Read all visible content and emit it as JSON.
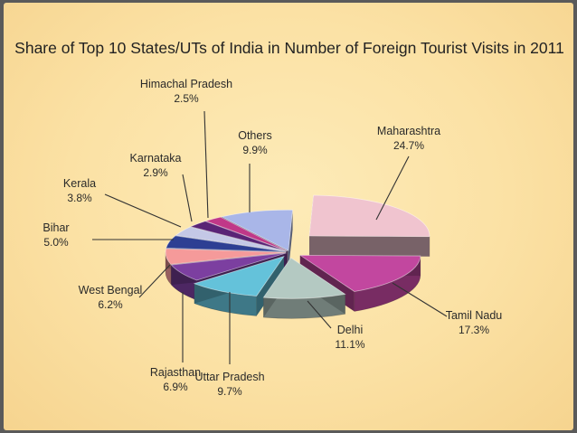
{
  "chart_data": {
    "type": "pie",
    "title": "Share of Top 10 States/UTs of India in Number of Foreign  Tourist Visits in 2011",
    "categories": [
      "Maharashtra",
      "Tamil Nadu",
      "Delhi",
      "Uttar Pradesh",
      "Rajasthan",
      "West Bengal",
      "Bihar",
      "Kerala",
      "Karnataka",
      "Himachal Pradesh",
      "Others"
    ],
    "values": [
      24.7,
      17.3,
      11.1,
      9.7,
      6.9,
      6.2,
      5.0,
      3.8,
      2.9,
      2.5,
      9.9
    ],
    "value_labels": [
      "24.7%",
      "17.3%",
      "11.1%",
      "9.7%",
      "6.9%",
      "6.2%",
      "5.0%",
      "3.8%",
      "2.9%",
      "2.5%",
      "9.9%"
    ],
    "unit": "%",
    "legend": "callout labels",
    "colors": [
      "#f0c4cf",
      "#c2479f",
      "#b4c9c2",
      "#64c2da",
      "#7c3fa0",
      "#f59a9a",
      "#2d3f93",
      "#c4c8e6",
      "#5a2476",
      "#c03888",
      "#a9b6e8"
    ]
  }
}
